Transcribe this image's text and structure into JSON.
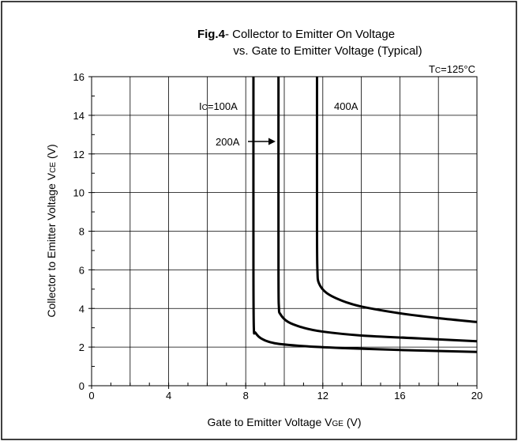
{
  "chart_data": {
    "type": "line",
    "title_bold": "Fig.4",
    "title_rest": "- Collector to Emitter On Voltage",
    "subtitle": "vs. Gate to Emitter Voltage (Typical)",
    "condition": {
      "main": "T",
      "sub": "C",
      "rest": "=125°C"
    },
    "xlabel": {
      "main": "Gate to Emitter Voltage V",
      "sub": "GE",
      "unit": " (V)"
    },
    "ylabel": {
      "main": "Collector to Emitter Voltage V",
      "sub": "CE",
      "unit": " (V)"
    },
    "xlim": [
      0,
      20
    ],
    "ylim": [
      0,
      16
    ],
    "x_ticks": [
      0,
      4,
      8,
      12,
      16,
      20
    ],
    "y_ticks": [
      0,
      2,
      4,
      6,
      8,
      10,
      12,
      14,
      16
    ],
    "grid": true,
    "series": [
      {
        "name": "IC=100A",
        "x": [
          8.4,
          8.4,
          8.42,
          8.5,
          8.8,
          9.5,
          11,
          13,
          16,
          20
        ],
        "y": [
          16,
          6,
          3.0,
          2.75,
          2.45,
          2.2,
          2.05,
          1.95,
          1.85,
          1.75
        ]
      },
      {
        "name": "200A",
        "x": [
          9.7,
          9.7,
          9.72,
          9.8,
          10.2,
          11,
          12,
          14,
          17,
          20
        ],
        "y": [
          16,
          6,
          4.1,
          3.7,
          3.3,
          3.0,
          2.8,
          2.6,
          2.45,
          2.3
        ]
      },
      {
        "name": "400A",
        "x": [
          11.7,
          11.7,
          11.72,
          11.8,
          12.2,
          13,
          14,
          16,
          18,
          20
        ],
        "y": [
          16,
          8,
          6,
          5.3,
          4.8,
          4.4,
          4.1,
          3.75,
          3.5,
          3.3
        ]
      }
    ],
    "annotations": {
      "ic_label": {
        "main": "I",
        "sub": "C",
        "rest": "=100A"
      },
      "label_200": "200A",
      "label_400": "400A"
    }
  }
}
